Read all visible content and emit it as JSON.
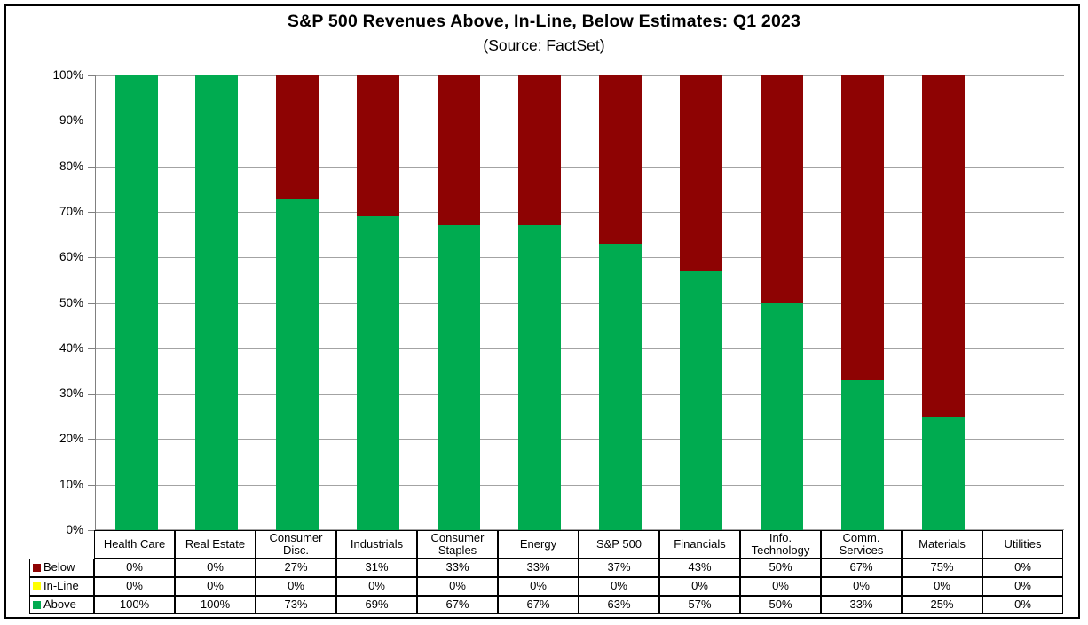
{
  "chart_data": {
    "type": "bar",
    "stacked": true,
    "orientation": "vertical",
    "title": "S&P 500 Revenues Above, In-Line, Below Estimates: Q1 2023",
    "subtitle": "(Source: FactSet)",
    "xlabel": "",
    "ylabel": "",
    "ylim": [
      0,
      100
    ],
    "ytick_suffix": "%",
    "yticks_percent": [
      100,
      90,
      80,
      70,
      60,
      50,
      40,
      30,
      20,
      10,
      0
    ],
    "grid": true,
    "legend_position": "table-left",
    "categories": [
      "Health Care",
      "Real Estate",
      "Consumer Disc.",
      "Industrials",
      "Consumer Staples",
      "Energy",
      "S&P 500",
      "Financials",
      "Info. Technology",
      "Comm. Services",
      "Materials",
      "Utilities"
    ],
    "series": [
      {
        "name": "Below",
        "color": "#8e0303",
        "values": [
          0,
          0,
          27,
          31,
          33,
          33,
          37,
          43,
          50,
          67,
          75,
          0
        ]
      },
      {
        "name": "In-Line",
        "color": "#ffff00",
        "values": [
          0,
          0,
          0,
          0,
          0,
          0,
          0,
          0,
          0,
          0,
          0,
          0
        ]
      },
      {
        "name": "Above",
        "color": "#00ab50",
        "values": [
          100,
          100,
          73,
          69,
          67,
          67,
          63,
          57,
          50,
          33,
          25,
          0
        ]
      }
    ],
    "value_suffix": "%"
  },
  "colors": {
    "below": "#8e0303",
    "inline": "#ffff00",
    "above": "#00ab50",
    "gridline": "#a3a3a3",
    "axis": "#808080",
    "table_border": "#000000"
  }
}
